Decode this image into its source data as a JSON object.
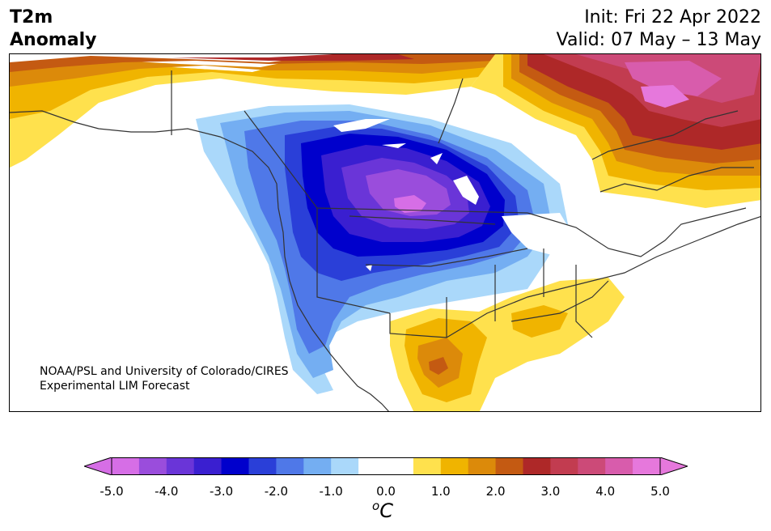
{
  "header": {
    "variable": "T2m",
    "variable_sub": "Anomaly",
    "init": "Init: Fri 22 Apr 2022",
    "valid": "Valid: 07 May – 13 May"
  },
  "credit": {
    "line1": "NOAA/PSL and University of Colorado/CIRES",
    "line2": "Experimental LIM Forecast"
  },
  "colorbar": {
    "ticks": [
      "-5.0",
      "-4.0",
      "-3.0",
      "-2.0",
      "-1.0",
      "0.0",
      "1.0",
      "2.0",
      "3.0",
      "4.0",
      "5.0"
    ],
    "unit_sup": "o",
    "unit": "C",
    "colors": [
      "#d66ee6",
      "#9a4ddc",
      "#6a35d8",
      "#3a1fd0",
      "#0000cc",
      "#2a3fd8",
      "#4f78e8",
      "#74aef2",
      "#aad8fa",
      "#ffffff",
      "#ffffff",
      "#ffe14d",
      "#f0b400",
      "#dc8a0a",
      "#c45a12",
      "#ae2828",
      "#c23c50",
      "#cc4a78",
      "#d85cac",
      "#e678dc"
    ],
    "under_color": "#d66ee6",
    "over_color": "#e678dc"
  }
}
